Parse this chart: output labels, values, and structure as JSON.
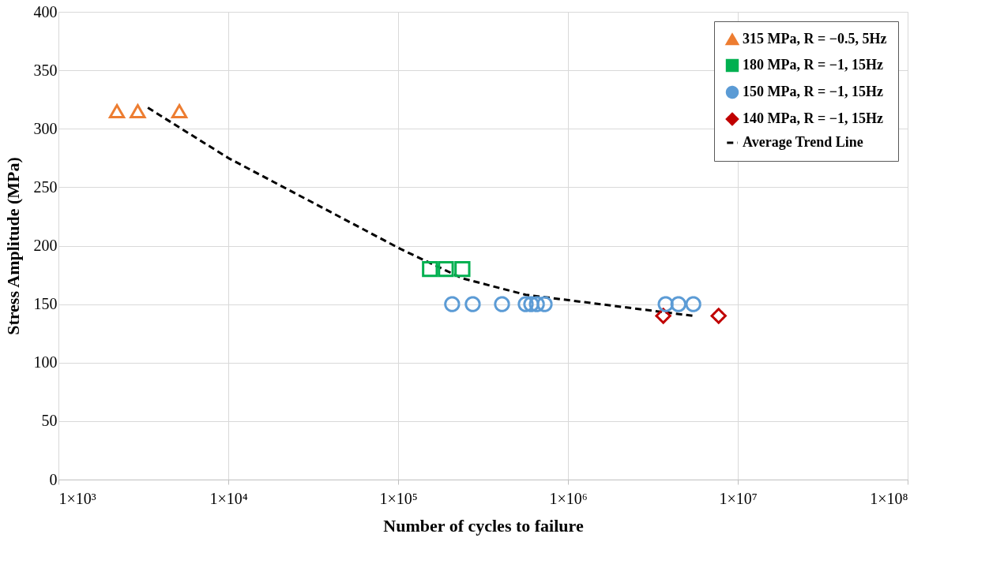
{
  "chart_data": {
    "type": "scatter",
    "xlabel": "Number of cycles to failure",
    "ylabel": "Stress Amplitude (MPa)",
    "log": "x",
    "grid": true,
    "legend": "top right",
    "xlim": [
      1000,
      100000000
    ],
    "ylim": [
      0,
      400
    ],
    "xticks": [
      {
        "value": 1000,
        "label": "1×10³"
      },
      {
        "value": 10000,
        "label": "1×10⁴"
      },
      {
        "value": 100000,
        "label": "1×10⁵"
      },
      {
        "value": 1000000,
        "label": "1×10⁶"
      },
      {
        "value": 10000000,
        "label": "1×10⁷"
      },
      {
        "value": 100000000,
        "label": "1×10⁸"
      }
    ],
    "yticks": [
      0,
      50,
      100,
      150,
      200,
      250,
      300,
      350,
      400
    ],
    "series": [
      {
        "name": "315 MPa, R = −0.5, 5Hz",
        "color": "#ed7d31",
        "marker": "triangle",
        "x": [
          2210,
          2930,
          5150
        ],
        "values": [
          315,
          315,
          315
        ]
      },
      {
        "name": "180 MPa, R = −1, 15Hz",
        "color": "#00b050",
        "marker": "square",
        "x": [
          154000,
          191000,
          239000
        ],
        "values": [
          180,
          180,
          180
        ]
      },
      {
        "name": "150 MPa, R = −1, 15Hz",
        "color": "#5b9bd5",
        "marker": "circle",
        "x": [
          208000,
          275000,
          409000,
          564000,
          608000,
          656000,
          729000,
          3760000,
          4470000,
          5470000
        ],
        "values": [
          150,
          150,
          150,
          150,
          150,
          150,
          150,
          150,
          150,
          150
        ]
      },
      {
        "name": "140 MPa, R = −1, 15Hz",
        "color": "#c00000",
        "marker": "diamond",
        "x": [
          3640000,
          7710000
        ],
        "values": [
          140,
          140
        ]
      },
      {
        "name": "Average Trend Line",
        "type": "line",
        "line_style": "dashed",
        "marker": "none",
        "color": "#000000",
        "x": [
          3360,
          10000,
          104000,
          240000,
          564000,
          5470000
        ],
        "values": [
          318,
          275,
          197,
          172,
          158,
          140
        ]
      }
    ]
  }
}
